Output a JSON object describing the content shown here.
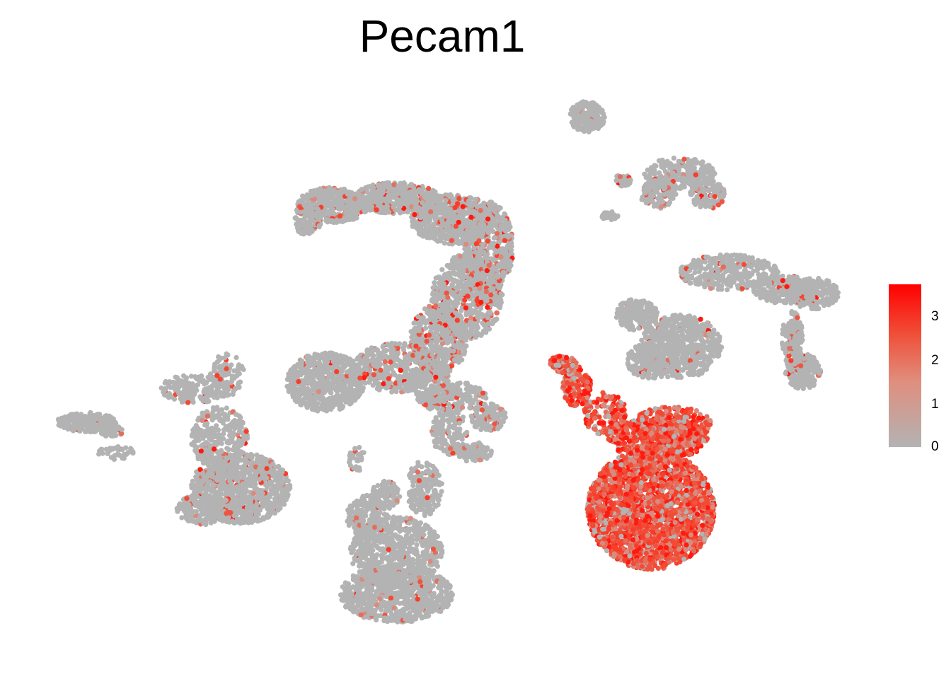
{
  "chart_data": {
    "type": "scatter",
    "title": "Pecam1",
    "xlabel": "",
    "ylabel": "",
    "grid": false,
    "axes_visible": false,
    "legend": {
      "placement": "right",
      "type": "colorbar",
      "ticks": [
        "0",
        "1",
        "2",
        "3"
      ],
      "range": [
        0,
        3.6
      ],
      "low_color": "#b3b3b3",
      "high_color": "#ff0000"
    },
    "series": [
      {
        "clusters": [
          {
            "id": "c1",
            "expression": "low",
            "fraction_expressing": 0.02
          },
          {
            "id": "c2",
            "expression": "low",
            "fraction_expressing": 0.07
          },
          {
            "id": "c3",
            "expression": "low",
            "fraction_expressing": 0.04
          },
          {
            "id": "c4",
            "expression": "low",
            "fraction_expressing": 0.12
          },
          {
            "id": "c5",
            "expression": "low",
            "fraction_expressing": 0.04
          },
          {
            "id": "c6",
            "expression": "low",
            "fraction_expressing": 0.05
          },
          {
            "id": "c7",
            "expression": "low",
            "fraction_expressing": 0.05
          },
          {
            "id": "c8",
            "expression": "low",
            "fraction_expressing": 0.08
          },
          {
            "id": "c9",
            "expression": "low",
            "fraction_expressing": 0.03
          },
          {
            "id": "c10",
            "expression": "low",
            "fraction_expressing": 0.06
          },
          {
            "id": "c11",
            "expression": "low",
            "fraction_expressing": 0.03
          },
          {
            "id": "c12",
            "expression": "low",
            "fraction_expressing": 0.02
          },
          {
            "id": "c13",
            "expression": "high",
            "fraction_expressing": 0.9
          }
        ]
      }
    ]
  }
}
